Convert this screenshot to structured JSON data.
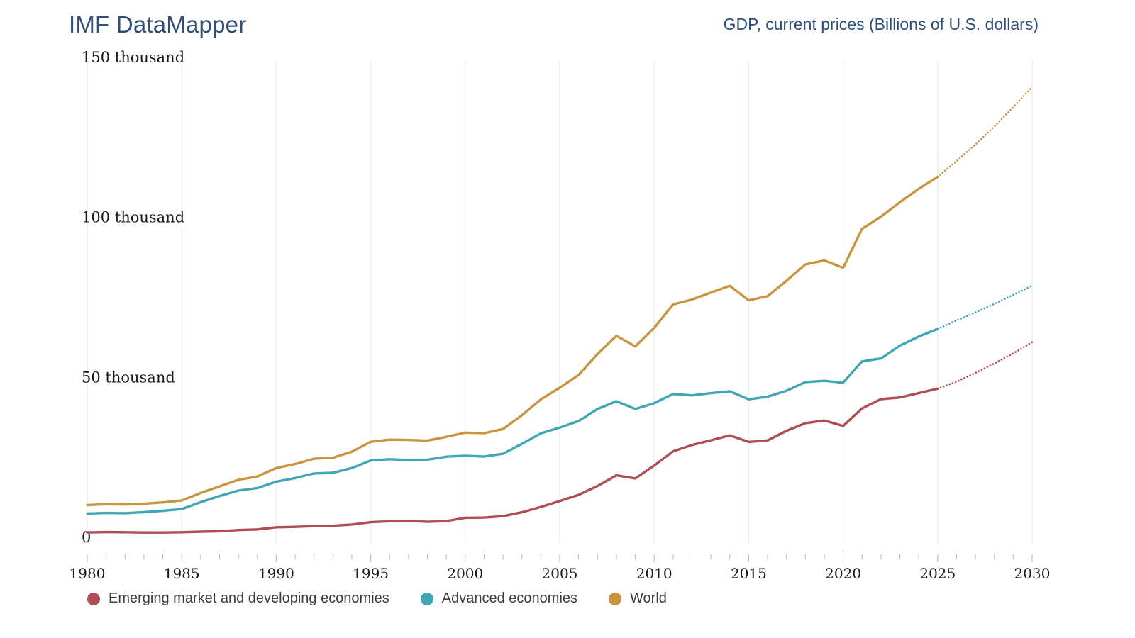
{
  "header": {
    "app_title": "IMF DataMapper",
    "chart_title": "GDP, current prices (Billions of U.S. dollars)"
  },
  "colors": {
    "title_text": "#2f4f78",
    "axis_text": "#1a1a1a",
    "legend_text": "#3c3c3c",
    "gridline": "#ededed",
    "tick": "#b5b5b5",
    "emerging": "#af4d54",
    "advanced": "#41a6b3",
    "world": "#c89440"
  },
  "chart_data": {
    "type": "line",
    "title": "GDP, current prices (Billions of U.S. dollars)",
    "unit": "Billions of U.S. dollars",
    "xlim": [
      1980,
      2030
    ],
    "ylim": [
      0,
      150000
    ],
    "grid": "vertical-only",
    "legend_position": "bottom-left",
    "projection_start_year": 2025,
    "projection_style": "dotted",
    "x": [
      1980,
      1981,
      1982,
      1983,
      1984,
      1985,
      1986,
      1987,
      1988,
      1989,
      1990,
      1991,
      1992,
      1993,
      1994,
      1995,
      1996,
      1997,
      1998,
      1999,
      2000,
      2001,
      2002,
      2003,
      2004,
      2005,
      2006,
      2007,
      2008,
      2009,
      2010,
      2011,
      2012,
      2013,
      2014,
      2015,
      2016,
      2017,
      2018,
      2019,
      2020,
      2021,
      2022,
      2023,
      2024,
      2025,
      2026,
      2027,
      2028,
      2029,
      2030
    ],
    "x_major_ticks": [
      1980,
      1985,
      1990,
      1995,
      2000,
      2005,
      2010,
      2015,
      2020,
      2025,
      2030
    ],
    "y_ticks": [
      {
        "value": 0,
        "label": "0"
      },
      {
        "value": 50000,
        "label": "50 thousand"
      },
      {
        "value": 100000,
        "label": "100 thousand"
      },
      {
        "value": 150000,
        "label": "150 thousand"
      }
    ],
    "series": [
      {
        "key": "emerging",
        "name": "Emerging market and developing economies",
        "color_key": "emerging",
        "values": [
          2630,
          2740,
          2700,
          2620,
          2620,
          2710,
          2880,
          3020,
          3380,
          3600,
          4260,
          4380,
          4600,
          4730,
          5110,
          5840,
          6130,
          6270,
          5950,
          6190,
          7220,
          7300,
          7720,
          8950,
          10610,
          12470,
          14390,
          17160,
          20480,
          19530,
          23550,
          27990,
          29970,
          31440,
          32960,
          30940,
          31400,
          34390,
          36790,
          37620,
          35920,
          41420,
          44320,
          44820,
          46190,
          47560,
          49760,
          52500,
          55450,
          58610,
          62120
        ]
      },
      {
        "key": "advanced",
        "name": "Advanced economies",
        "color_key": "advanced",
        "values": [
          8550,
          8720,
          8670,
          9000,
          9410,
          9940,
          12100,
          14010,
          15730,
          16510,
          18510,
          19640,
          21070,
          21260,
          22770,
          25130,
          25520,
          25280,
          25370,
          26330,
          26620,
          26350,
          27240,
          30330,
          33610,
          35390,
          37460,
          41240,
          43620,
          41240,
          43050,
          45910,
          45470,
          46170,
          46750,
          44250,
          45070,
          46930,
          49620,
          50030,
          49450,
          56110,
          57020,
          61030,
          63870,
          66240,
          68900,
          71400,
          74100,
          76900,
          79760
        ]
      },
      {
        "key": "world",
        "name": "World",
        "color_key": "world",
        "values": [
          11190,
          11460,
          11370,
          11620,
          12030,
          12650,
          14980,
          17030,
          19110,
          20110,
          22770,
          24020,
          25670,
          25990,
          27880,
          30970,
          31650,
          31550,
          31320,
          32520,
          33840,
          33650,
          34960,
          39280,
          44220,
          47860,
          51850,
          58400,
          64100,
          60770,
          66600,
          73900,
          75440,
          77610,
          79710,
          75190,
          76470,
          81320,
          86410,
          87650,
          85370,
          97530,
          101340,
          105850,
          110060,
          113800,
          118660,
          123900,
          129550,
          135510,
          141880
        ]
      }
    ]
  }
}
